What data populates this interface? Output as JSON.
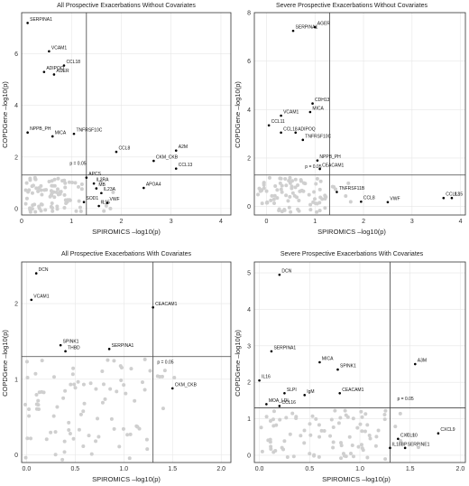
{
  "shared_axes": {
    "xlabel": "SPIROMICS –log10(p)",
    "ylabel": "COPDGene –log10(p)",
    "threshold_label": "p = 0.05"
  },
  "chart_data": [
    {
      "type": "scatter",
      "title": "All Prospective Exacerbations Without Covariates",
      "xlim": [
        0,
        4.2
      ],
      "ylim": [
        -0.25,
        7.6
      ],
      "xticks": [
        0,
        1,
        2,
        3,
        4
      ],
      "yticks": [
        0,
        2,
        4,
        6
      ],
      "threshold": {
        "x": 1.3,
        "y": 1.3
      },
      "labeled_points": [
        {
          "label": "SERPINA1",
          "x": 0.12,
          "y": 7.2
        },
        {
          "label": "VCAM1",
          "x": 0.55,
          "y": 6.1
        },
        {
          "label": "CCL18",
          "x": 0.85,
          "y": 5.55
        },
        {
          "label": "ADIPOQ",
          "x": 0.45,
          "y": 5.3
        },
        {
          "label": "AGER",
          "x": 0.65,
          "y": 5.2
        },
        {
          "label": "NPPB_PH",
          "x": 0.12,
          "y": 2.95
        },
        {
          "label": "MICA",
          "x": 0.62,
          "y": 2.8
        },
        {
          "label": "TNFRSF10C",
          "x": 1.05,
          "y": 2.9
        },
        {
          "label": "p = 0.05",
          "x": 0.92,
          "y": 1.6
        },
        {
          "label": "CCL8",
          "x": 1.9,
          "y": 2.2
        },
        {
          "label": "A2M",
          "x": 3.1,
          "y": 2.25
        },
        {
          "label": "CKM_CKB",
          "x": 2.65,
          "y": 1.85
        },
        {
          "label": "CCL13",
          "x": 3.1,
          "y": 1.55
        },
        {
          "label": "APCS",
          "x": 1.3,
          "y": 1.2
        },
        {
          "label": "IL2RA",
          "x": 1.45,
          "y": 0.97
        },
        {
          "label": "MB",
          "x": 1.5,
          "y": 0.78
        },
        {
          "label": "IL23A",
          "x": 1.6,
          "y": 0.6
        },
        {
          "label": "APOA4",
          "x": 2.45,
          "y": 0.8
        },
        {
          "label": "SOD1",
          "x": 1.25,
          "y": 0.25
        },
        {
          "label": "IL15",
          "x": 1.55,
          "y": 0.1
        },
        {
          "label": "VWF",
          "x": 1.72,
          "y": 0.22
        }
      ]
    },
    {
      "type": "scatter",
      "title": "Severe Prospective Exacerbations Without Covariates",
      "xlim": [
        -0.25,
        4.1
      ],
      "ylim": [
        -0.35,
        8.0
      ],
      "xticks": [
        0,
        1,
        2,
        3,
        4
      ],
      "yticks": [
        0,
        2,
        4,
        6,
        8
      ],
      "threshold": {
        "x": 1.3,
        "y": 1.3
      },
      "labeled_points": [
        {
          "label": "SERPINA1",
          "x": 0.55,
          "y": 7.25
        },
        {
          "label": "AGER",
          "x": 1.0,
          "y": 7.4
        },
        {
          "label": "CDH13",
          "x": 0.95,
          "y": 4.25
        },
        {
          "label": "MICA",
          "x": 0.9,
          "y": 3.9
        },
        {
          "label": "VCAM1",
          "x": 0.3,
          "y": 3.75
        },
        {
          "label": "CCL11",
          "x": 0.05,
          "y": 3.35
        },
        {
          "label": "CCL18",
          "x": 0.3,
          "y": 3.05
        },
        {
          "label": "ADIPOQ",
          "x": 0.6,
          "y": 3.05
        },
        {
          "label": "TNFRSF10C",
          "x": 0.75,
          "y": 2.75
        },
        {
          "label": "NPPB_PH",
          "x": 1.05,
          "y": 1.9
        },
        {
          "label": "CEACAM1",
          "x": 1.1,
          "y": 1.55
        },
        {
          "label": "p = 0.05",
          "x": 0.75,
          "y": 1.5
        },
        {
          "label": "TNFRSF11B",
          "x": 1.45,
          "y": 0.6
        },
        {
          "label": "CCL8",
          "x": 1.95,
          "y": 0.2
        },
        {
          "label": "VWF",
          "x": 2.5,
          "y": 0.18
        },
        {
          "label": "CCL13",
          "x": 3.65,
          "y": 0.35
        },
        {
          "label": "IL15",
          "x": 3.82,
          "y": 0.35
        }
      ]
    },
    {
      "type": "scatter",
      "title": "All Prospective Exacerbations With Covariates",
      "xlim": [
        -0.05,
        2.1
      ],
      "ylim": [
        -0.1,
        2.55
      ],
      "xticks": [
        0.0,
        0.5,
        1.0,
        1.5,
        2.0
      ],
      "yticks": [
        0,
        1,
        2
      ],
      "threshold": {
        "x": 1.3,
        "y": 1.3
      },
      "labeled_points": [
        {
          "label": "DCN",
          "x": 0.1,
          "y": 2.4
        },
        {
          "label": "VCAM1",
          "x": 0.05,
          "y": 2.05
        },
        {
          "label": "CEACAM1",
          "x": 1.3,
          "y": 1.95
        },
        {
          "label": "SPINK1",
          "x": 0.35,
          "y": 1.45
        },
        {
          "label": "THBD",
          "x": 0.4,
          "y": 1.37
        },
        {
          "label": "SERPINA1",
          "x": 0.85,
          "y": 1.4
        },
        {
          "label": "p = 0.05",
          "x": 1.32,
          "y": 1.18
        },
        {
          "label": "CKM_CKB",
          "x": 1.5,
          "y": 0.88
        }
      ]
    },
    {
      "type": "scatter",
      "title": "Severe Prospective Exacerbations With Covariates",
      "xlim": [
        -0.05,
        2.05
      ],
      "ylim": [
        -0.2,
        5.3
      ],
      "xticks": [
        0.0,
        0.5,
        1.0,
        1.5,
        2.0
      ],
      "yticks": [
        0,
        1,
        2,
        3,
        4,
        5
      ],
      "threshold": {
        "x": 1.3,
        "y": 1.3
      },
      "labeled_points": [
        {
          "label": "DCN",
          "x": 0.2,
          "y": 4.95
        },
        {
          "label": "SERPINA1",
          "x": 0.12,
          "y": 2.85
        },
        {
          "label": "MICA",
          "x": 0.6,
          "y": 2.55
        },
        {
          "label": "SPINK1",
          "x": 0.78,
          "y": 2.35
        },
        {
          "label": "A3M",
          "x": 1.55,
          "y": 2.5
        },
        {
          "label": "IL16",
          "x": 0.0,
          "y": 2.05
        },
        {
          "label": "SLPI",
          "x": 0.25,
          "y": 1.7
        },
        {
          "label": "IgM",
          "x": 0.45,
          "y": 1.65
        },
        {
          "label": "CEACAM1",
          "x": 0.8,
          "y": 1.7
        },
        {
          "label": "MOA_LDL",
          "x": 0.07,
          "y": 1.4
        },
        {
          "label": "CCL16",
          "x": 0.2,
          "y": 1.35
        },
        {
          "label": "p = 0.05",
          "x": 1.35,
          "y": 1.45
        },
        {
          "label": "CXCL9",
          "x": 1.78,
          "y": 0.6
        },
        {
          "label": "CXCL10",
          "x": 1.38,
          "y": 0.45
        },
        {
          "label": "IL18BP",
          "x": 1.3,
          "y": 0.2
        },
        {
          "label": "SERPINE1",
          "x": 1.45,
          "y": 0.2
        }
      ]
    }
  ]
}
